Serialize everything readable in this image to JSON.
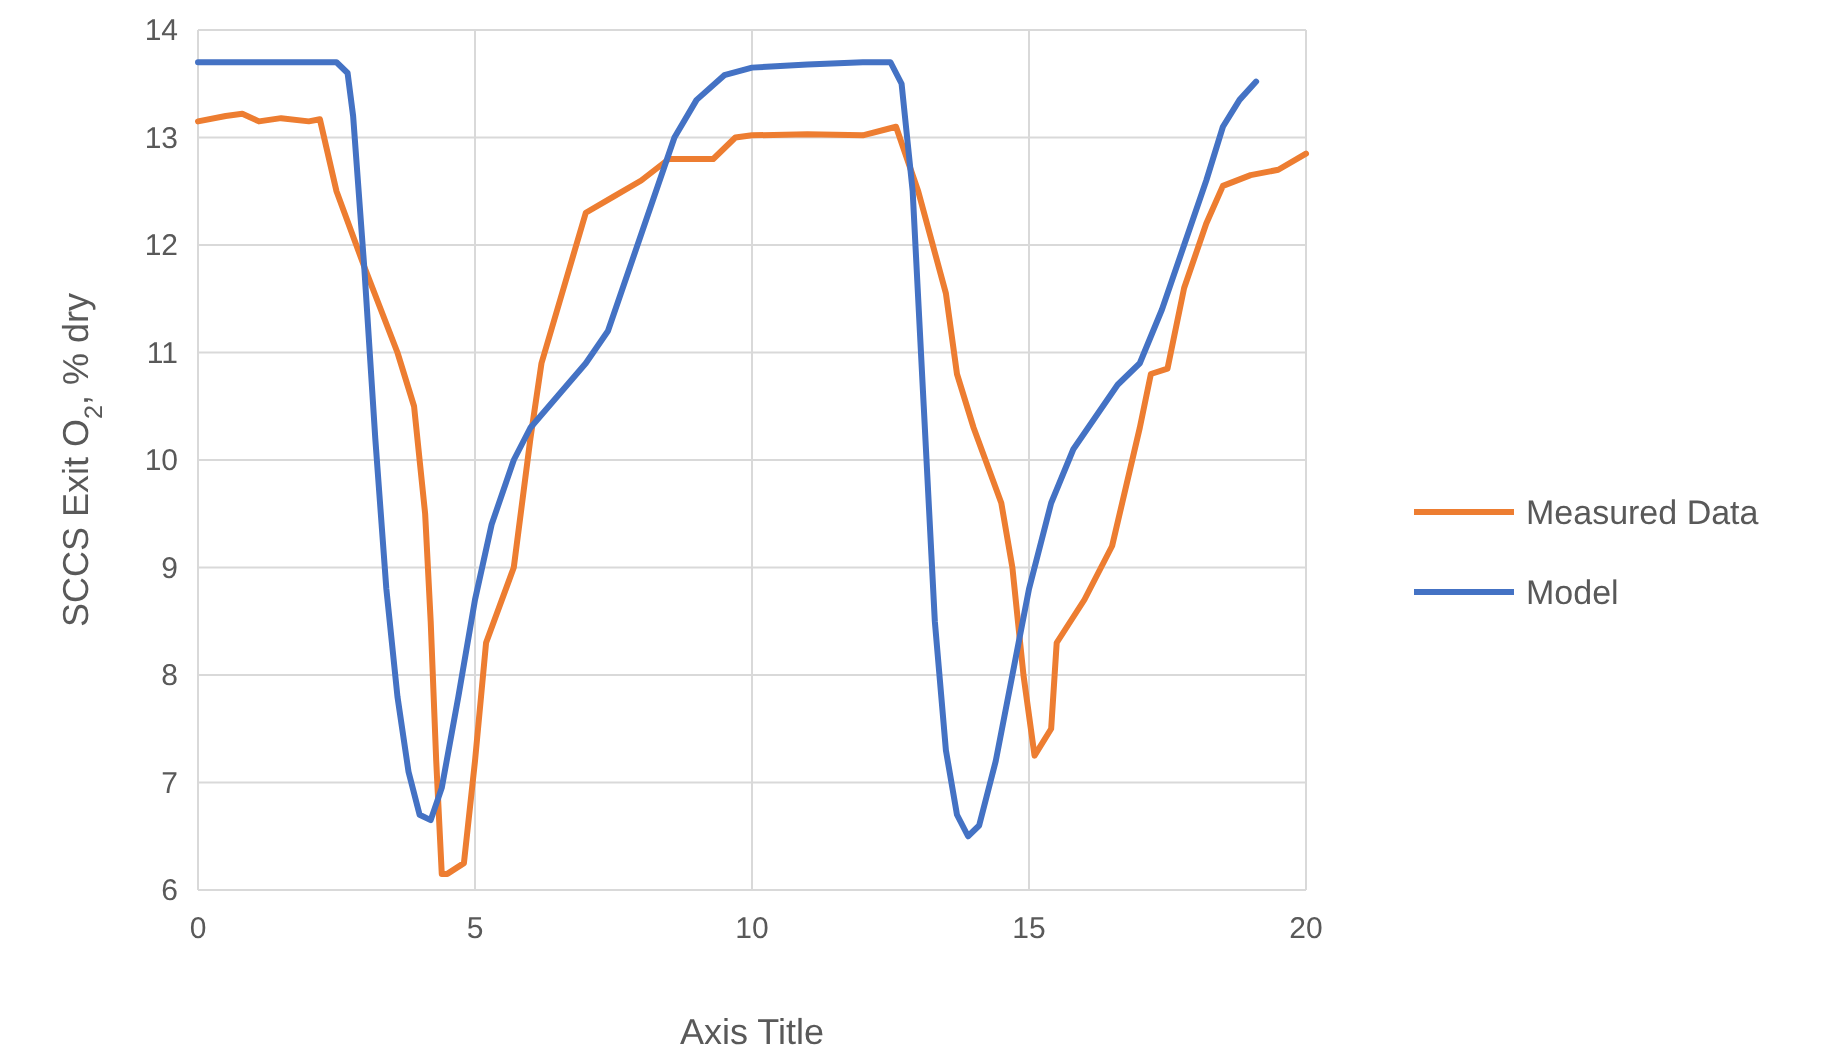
{
  "chart_data": {
    "type": "line",
    "xlabel": "Axis Title",
    "ylabel": "SCCS Exit O$_{2}$, % dry",
    "xlim": [
      0,
      20
    ],
    "xticks": [
      0,
      5,
      10,
      15,
      20
    ],
    "ylim": [
      6,
      14
    ],
    "yticks": [
      6,
      7,
      8,
      9,
      10,
      11,
      12,
      13,
      14
    ],
    "grid": true,
    "legend": "right",
    "marker": "none",
    "line_style": "solid",
    "series": [
      {
        "name": "Measured Data",
        "color": "#ed7d31",
        "x": [
          0,
          0.5,
          0.8,
          1.1,
          1.5,
          2.0,
          2.2,
          2.5,
          3.0,
          3.3,
          3.6,
          3.9,
          4.1,
          4.2,
          4.3,
          4.4,
          4.5,
          4.8,
          5.0,
          5.2,
          5.7,
          6.0,
          6.2,
          6.6,
          7.0,
          7.5,
          8.0,
          8.5,
          9.0,
          9.3,
          9.7,
          10.0,
          11.0,
          12.0,
          12.6,
          13.0,
          13.5,
          13.7,
          14.0,
          14.5,
          14.7,
          14.9,
          15.1,
          15.4,
          15.5,
          16.0,
          16.5,
          17.0,
          17.2,
          17.5,
          17.8,
          18.2,
          18.5,
          19.0,
          19.5,
          20.0
        ],
        "values": [
          13.15,
          13.2,
          13.22,
          13.15,
          13.18,
          13.15,
          13.17,
          12.5,
          11.8,
          11.4,
          11.0,
          10.5,
          9.5,
          8.5,
          7.2,
          6.15,
          6.15,
          6.25,
          7.2,
          8.3,
          9.0,
          10.2,
          10.9,
          11.6,
          12.3,
          12.45,
          12.6,
          12.8,
          12.8,
          12.8,
          13.0,
          13.02,
          13.03,
          13.02,
          13.1,
          12.5,
          11.55,
          10.8,
          10.3,
          9.6,
          9.0,
          8.0,
          7.25,
          7.5,
          8.3,
          8.7,
          9.2,
          10.3,
          10.8,
          10.85,
          11.6,
          12.2,
          12.55,
          12.65,
          12.7,
          12.85
        ]
      },
      {
        "name": "Model",
        "color": "#4472c4",
        "x": [
          0,
          2.5,
          2.7,
          2.8,
          3.0,
          3.2,
          3.4,
          3.6,
          3.8,
          4.0,
          4.2,
          4.4,
          4.7,
          5.0,
          5.3,
          5.7,
          6.0,
          6.5,
          7.0,
          7.4,
          7.8,
          8.2,
          8.6,
          9.0,
          9.5,
          10.0,
          11.0,
          12.0,
          12.5,
          12.7,
          12.9,
          13.1,
          13.3,
          13.5,
          13.7,
          13.9,
          14.1,
          14.4,
          14.7,
          15.0,
          15.4,
          15.8,
          16.2,
          16.6,
          17.0,
          17.4,
          17.8,
          18.2,
          18.5,
          18.8,
          19.1
        ],
        "values": [
          13.7,
          13.7,
          13.6,
          13.2,
          11.8,
          10.2,
          8.8,
          7.8,
          7.1,
          6.7,
          6.65,
          6.95,
          7.8,
          8.7,
          9.4,
          10.0,
          10.3,
          10.6,
          10.9,
          11.2,
          11.8,
          12.4,
          13.0,
          13.35,
          13.58,
          13.65,
          13.68,
          13.7,
          13.7,
          13.5,
          12.5,
          10.5,
          8.5,
          7.3,
          6.7,
          6.5,
          6.6,
          7.2,
          8.0,
          8.8,
          9.6,
          10.1,
          10.4,
          10.7,
          10.9,
          11.4,
          12.0,
          12.6,
          13.1,
          13.35,
          13.52
        ]
      }
    ]
  }
}
